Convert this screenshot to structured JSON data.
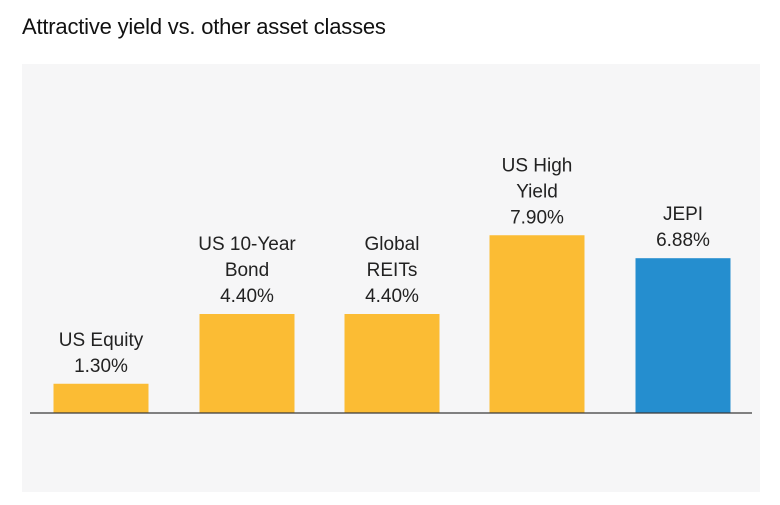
{
  "title": "Attractive yield vs. other asset classes",
  "colors": {
    "default": "#fbbc34",
    "highlight": "#258ecf",
    "baseline": "#3a3a3a",
    "panel": "#f6f6f7"
  },
  "chart_data": {
    "type": "bar",
    "categories": [
      "US Equity",
      "US 10-Year Bond",
      "Global REITs",
      "US High Yield",
      "JEPI"
    ],
    "label_lines": [
      [
        "US Equity"
      ],
      [
        "US 10-Year",
        "Bond"
      ],
      [
        "Global",
        "REITs"
      ],
      [
        "US High",
        "Yield"
      ],
      [
        "JEPI"
      ]
    ],
    "values": [
      1.3,
      4.4,
      4.4,
      7.9,
      6.88
    ],
    "value_labels": [
      "1.30%",
      "4.40%",
      "4.40%",
      "7.90%",
      "6.88%"
    ],
    "highlight": "JEPI",
    "title": "Attractive yield vs. other asset classes",
    "xlabel": "",
    "ylabel": "",
    "ylim": [
      0,
      8
    ],
    "grid": false,
    "legend": "none"
  }
}
